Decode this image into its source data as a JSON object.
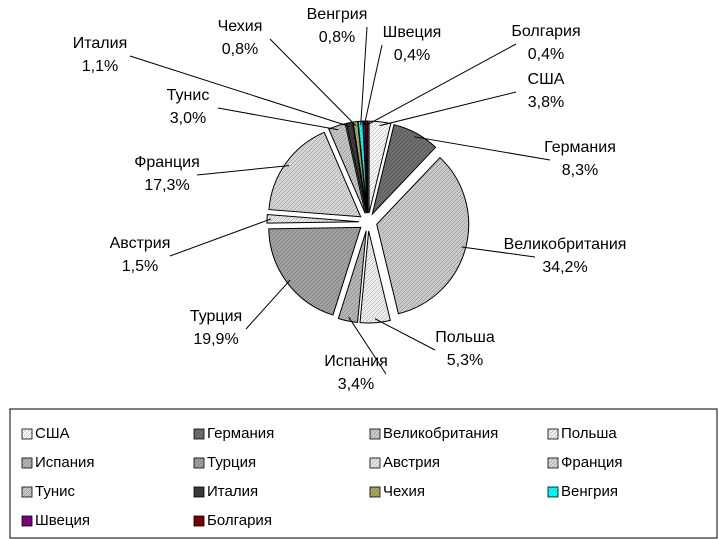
{
  "chart_data": {
    "type": "pie",
    "categories": [
      "США",
      "Германия",
      "Великобритания",
      "Польша",
      "Испания",
      "Турция",
      "Австрия",
      "Франция",
      "Тунис",
      "Италия",
      "Чехия",
      "Венгрия",
      "Швеция",
      "Болгария"
    ],
    "values": [
      3.8,
      8.3,
      34.2,
      5.3,
      3.4,
      19.9,
      1.5,
      17.3,
      3.0,
      1.1,
      0.8,
      0.8,
      0.4,
      0.4
    ],
    "value_labels": [
      "3,8%",
      "8,3%",
      "34,2%",
      "5,3%",
      "3,4%",
      "19,9%",
      "1,5%",
      "17,3%",
      "3,0%",
      "1,1%",
      "0,8%",
      "0,8%",
      "0,4%",
      "0,4%"
    ],
    "colors": [
      "#f4f4f4",
      "#6e6e6e",
      "#c8c8c8",
      "#ececec",
      "#b4b4b4",
      "#a0a0a0",
      "#e4e4e4",
      "#d4d4d4",
      "#c4c4c4",
      "#3c3c3c",
      "#a8a860",
      "#00ffff",
      "#800080",
      "#800000"
    ],
    "legend": "bottom"
  }
}
